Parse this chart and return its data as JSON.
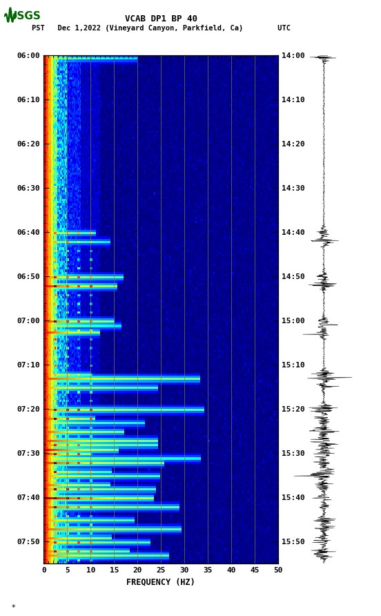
{
  "title_line1": "VCAB DP1 BP 40",
  "title_line2": "PST   Dec 1,2022 (Vineyard Canyon, Parkfield, Ca)        UTC",
  "xlabel": "FREQUENCY (HZ)",
  "background_color": "#ffffff",
  "spectrogram_bg": "#00008B",
  "grid_color": "#808040",
  "figsize": [
    5.52,
    8.92
  ],
  "dpi": 100,
  "logo_color": "#006400",
  "waveform_color": "#000000",
  "colormap": "jet",
  "seed": 42,
  "pst_ticks": [
    "06:00",
    "06:10",
    "06:20",
    "06:30",
    "06:40",
    "06:50",
    "07:00",
    "07:10",
    "07:20",
    "07:30",
    "07:40",
    "07:50"
  ],
  "utc_ticks": [
    "14:00",
    "14:10",
    "14:20",
    "14:30",
    "14:40",
    "14:50",
    "15:00",
    "15:10",
    "15:20",
    "15:30",
    "15:40",
    "15:50"
  ],
  "vline_freqs": [
    5,
    10,
    15,
    20,
    25,
    30,
    35,
    40,
    45
  ],
  "event_times_minutes": [
    0.5,
    40,
    42,
    50,
    52,
    60,
    61,
    63,
    72,
    73,
    75,
    80,
    82,
    83,
    85,
    87,
    88,
    89,
    90,
    91,
    92,
    94,
    95,
    97,
    98,
    100,
    102,
    105,
    107,
    109,
    110,
    112,
    113
  ],
  "total_minutes": 115,
  "freq_max": 50,
  "freq_min": 0,
  "n_time": 230,
  "n_freq": 250
}
